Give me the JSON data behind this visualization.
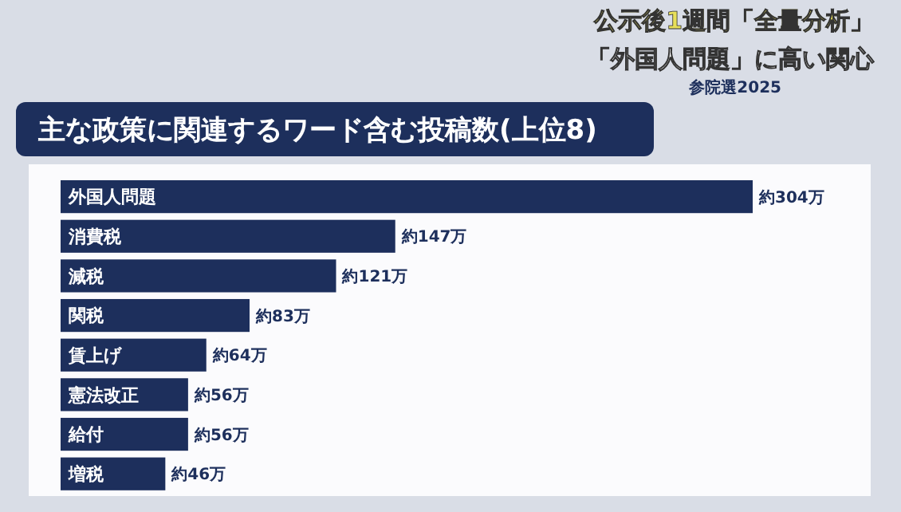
{
  "chart_data": {
    "type": "bar",
    "orientation": "horizontal",
    "title": "主な政策に関連するワード含む投稿数(上位8)",
    "annotations": [
      "公示後1週間「全量分析」",
      "「外国人問題」に高い関心",
      "参院選2025"
    ],
    "categories": [
      "外国人問題",
      "消費税",
      "減税",
      "関税",
      "賃上げ",
      "憲法改正",
      "給付",
      "増税"
    ],
    "values": [
      304,
      147,
      121,
      83,
      64,
      56,
      56,
      46
    ],
    "value_labels": [
      "約304万",
      "約147万",
      "約121万",
      "約83万",
      "約64万",
      "約56万",
      "約56万",
      "約46万"
    ],
    "color": "#1d2f5c",
    "xlim": [
      0,
      304
    ]
  }
}
